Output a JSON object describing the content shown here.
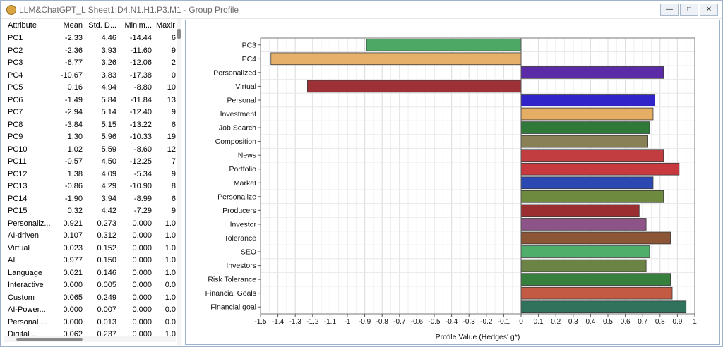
{
  "window": {
    "title": "LLM&ChatGPT_L Sheet1:D4.N1.H1.P3.M1 - Group Profile",
    "buttons": {
      "minimize": "—",
      "restore": "□",
      "close": "✕"
    }
  },
  "table": {
    "columns": [
      "Attribute",
      "Mean",
      "Std. D...",
      "Minim...",
      "Maxir"
    ],
    "rows": [
      [
        "PC1",
        "-2.33",
        "4.46",
        "-14.44",
        "6"
      ],
      [
        "PC2",
        "-2.36",
        "3.93",
        "-11.60",
        "9"
      ],
      [
        "PC3",
        "-6.77",
        "3.26",
        "-12.06",
        "2"
      ],
      [
        "PC4",
        "-10.67",
        "3.83",
        "-17.38",
        "0"
      ],
      [
        "PC5",
        "0.16",
        "4.94",
        "-8.80",
        "10"
      ],
      [
        "PC6",
        "-1.49",
        "5.84",
        "-11.84",
        "13"
      ],
      [
        "PC7",
        "-2.94",
        "5.14",
        "-12.40",
        "9"
      ],
      [
        "PC8",
        "-3.84",
        "5.15",
        "-13.22",
        "6"
      ],
      [
        "PC9",
        "1.30",
        "5.96",
        "-10.33",
        "19"
      ],
      [
        "PC10",
        "1.02",
        "5.59",
        "-8.60",
        "12"
      ],
      [
        "PC11",
        "-0.57",
        "4.50",
        "-12.25",
        "7"
      ],
      [
        "PC12",
        "1.38",
        "4.09",
        "-5.34",
        "9"
      ],
      [
        "PC13",
        "-0.86",
        "4.29",
        "-10.90",
        "8"
      ],
      [
        "PC14",
        "-1.90",
        "3.94",
        "-8.99",
        "6"
      ],
      [
        "PC15",
        "0.32",
        "4.42",
        "-7.29",
        "9"
      ],
      [
        "Personaliz...",
        "0.921",
        "0.273",
        "0.000",
        "1.0"
      ],
      [
        "AI-driven",
        "0.107",
        "0.312",
        "0.000",
        "1.0"
      ],
      [
        "Virtual",
        "0.023",
        "0.152",
        "0.000",
        "1.0"
      ],
      [
        "AI",
        "0.977",
        "0.150",
        "0.000",
        "1.0"
      ],
      [
        "Language",
        "0.021",
        "0.146",
        "0.000",
        "1.0"
      ],
      [
        "Interactive",
        "0.000",
        "0.005",
        "0.000",
        "0.0"
      ],
      [
        "Custom",
        "0.065",
        "0.249",
        "0.000",
        "1.0"
      ],
      [
        "AI-Power...",
        "0.000",
        "0.007",
        "0.000",
        "0.0"
      ],
      [
        "Personal ...",
        "0.000",
        "0.013",
        "0.000",
        "0.0"
      ],
      [
        "Digital ...",
        "0.062",
        "0.237",
        "0.000",
        "1.0"
      ]
    ]
  },
  "chart_data": {
    "type": "bar",
    "orientation": "horizontal",
    "xlabel": "Profile Value (Hedges' g*)",
    "xlim": [
      -1.5,
      1
    ],
    "xticks": [
      -1.5,
      -1.4,
      -1.3,
      -1.2,
      -1.1,
      -1,
      -0.9,
      -0.8,
      -0.7,
      -0.6,
      -0.5,
      -0.4,
      -0.3,
      -0.2,
      -0.1,
      0,
      0.1,
      0.2,
      0.3,
      0.4,
      0.5,
      0.6,
      0.7,
      0.8,
      0.9,
      1
    ],
    "grid": true,
    "categories": [
      "PC3",
      "PC4",
      "Personalized",
      "Virtual",
      "Personal",
      "Investment",
      "Job Search",
      "Composition",
      "News",
      "Portfolio",
      "Market",
      "Personalize",
      "Producers",
      "Investor",
      "Tolerance",
      "SEO",
      "Investors",
      "Risk Tolerance",
      "Financial Goals",
      "Financial goal"
    ],
    "values": [
      -0.89,
      -1.44,
      0.82,
      -1.23,
      0.77,
      0.76,
      0.74,
      0.73,
      0.82,
      0.91,
      0.76,
      0.82,
      0.68,
      0.72,
      0.86,
      0.74,
      0.72,
      0.86,
      0.87,
      0.95
    ],
    "colors": [
      "#4ea865",
      "#e6b06a",
      "#5b2aa6",
      "#9e3136",
      "#3124c8",
      "#e6ad64",
      "#2f7a3b",
      "#8a8056",
      "#c23d40",
      "#c8393f",
      "#2b48b3",
      "#6e8a3f",
      "#9a2e30",
      "#8e5488",
      "#8c5535",
      "#4fae6a",
      "#6b8446",
      "#367f3d",
      "#c25a44",
      "#2f735c"
    ]
  }
}
